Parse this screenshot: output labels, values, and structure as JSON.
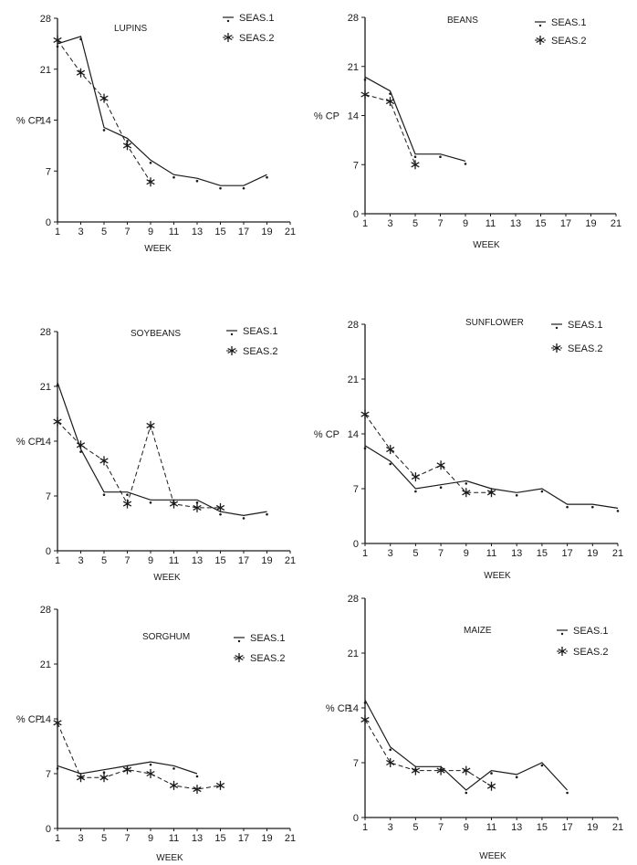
{
  "chart_data": [
    {
      "type": "line",
      "title": "LUPINS",
      "xlabel": "WEEK",
      "ylabel": "% CP",
      "ylim": [
        0,
        28
      ],
      "xlim": [
        1,
        21
      ],
      "yticks": [
        "0",
        "7",
        "14",
        "21",
        "28"
      ],
      "xticks": [
        "1",
        "3",
        "5",
        "7",
        "9",
        "11",
        "13",
        "15",
        "17",
        "19",
        "21"
      ],
      "legend": [
        "SEAS.1",
        "SEAS.2"
      ],
      "series": [
        {
          "name": "SEAS.1",
          "x": [
            1,
            3,
            5,
            7,
            9,
            11,
            13,
            15,
            17,
            19
          ],
          "y": [
            24.5,
            25.5,
            13,
            11.5,
            8.5,
            6.5,
            6,
            5,
            5,
            6.5
          ]
        },
        {
          "name": "SEAS.2",
          "x": [
            1,
            3,
            5,
            7,
            9
          ],
          "y": [
            25,
            20.5,
            17,
            10.5,
            5.5
          ]
        }
      ]
    },
    {
      "type": "line",
      "title": "BEANS",
      "xlabel": "WEEK",
      "ylabel": "% CP",
      "ylim": [
        0,
        28
      ],
      "xlim": [
        1,
        21
      ],
      "yticks": [
        "0",
        "7",
        "14",
        "21",
        "28"
      ],
      "xticks": [
        "1",
        "3",
        "5",
        "7",
        "9",
        "11",
        "13",
        "15",
        "17",
        "19",
        "21"
      ],
      "legend": [
        "SEAS.1",
        "SEAS.2"
      ],
      "series": [
        {
          "name": "SEAS.1",
          "x": [
            1,
            3,
            5,
            7,
            9
          ],
          "y": [
            19.5,
            17.5,
            8.5,
            8.5,
            7.5
          ]
        },
        {
          "name": "SEAS.2",
          "x": [
            1,
            3,
            5
          ],
          "y": [
            17,
            16,
            7
          ]
        }
      ]
    },
    {
      "type": "line",
      "title": "SOYBEANS",
      "xlabel": "WEEK",
      "ylabel": "% CP",
      "ylim": [
        0,
        28
      ],
      "xlim": [
        1,
        21
      ],
      "yticks": [
        "0",
        "7",
        "14",
        "21",
        "28"
      ],
      "xticks": [
        "1",
        "3",
        "5",
        "7",
        "9",
        "11",
        "13",
        "15",
        "17",
        "19",
        "21"
      ],
      "legend": [
        "SEAS.1",
        "SEAS.2"
      ],
      "series": [
        {
          "name": "SEAS.1",
          "x": [
            1,
            3,
            5,
            7,
            9,
            11,
            13,
            15,
            17,
            19
          ],
          "y": [
            21.5,
            13,
            7.5,
            7.5,
            6.5,
            6.5,
            6.5,
            5,
            4.5,
            5
          ]
        },
        {
          "name": "SEAS.2",
          "x": [
            1,
            3,
            5,
            7,
            9,
            11,
            13,
            15
          ],
          "y": [
            16.5,
            13.5,
            11.5,
            6,
            16,
            6,
            5.5,
            5.5
          ]
        }
      ]
    },
    {
      "type": "line",
      "title": "SUNFLOWER",
      "xlabel": "WEEK",
      "ylabel": "% CP",
      "ylim": [
        0,
        28
      ],
      "xlim": [
        1,
        21
      ],
      "yticks": [
        "0",
        "7",
        "14",
        "21",
        "28"
      ],
      "xticks": [
        "1",
        "3",
        "5",
        "7",
        "9",
        "11",
        "13",
        "15",
        "17",
        "19",
        "21"
      ],
      "legend": [
        "SEAS.1",
        "SEAS.2"
      ],
      "series": [
        {
          "name": "SEAS.1",
          "x": [
            1,
            3,
            5,
            7,
            9,
            11,
            13,
            15,
            17,
            19,
            21
          ],
          "y": [
            12.5,
            10.5,
            7,
            7.5,
            8,
            7,
            6.5,
            7,
            5,
            5,
            4.5
          ]
        },
        {
          "name": "SEAS.2",
          "x": [
            1,
            3,
            5,
            7,
            9,
            11
          ],
          "y": [
            16.5,
            12,
            8.5,
            10,
            6.5,
            6.5
          ]
        }
      ]
    },
    {
      "type": "line",
      "title": "SORGHUM",
      "xlabel": "WEEK",
      "ylabel": "% CP",
      "ylim": [
        0,
        28
      ],
      "xlim": [
        1,
        21
      ],
      "yticks": [
        "0",
        "7",
        "14",
        "21",
        "28"
      ],
      "xticks": [
        "1",
        "3",
        "5",
        "7",
        "9",
        "11",
        "13",
        "15",
        "17",
        "19",
        "21"
      ],
      "legend": [
        "SEAS.1",
        "SEAS.2"
      ],
      "series": [
        {
          "name": "SEAS.1",
          "x": [
            1,
            3,
            5,
            7,
            9,
            11,
            13
          ],
          "y": [
            8,
            7,
            7.5,
            8,
            8.5,
            8,
            7
          ]
        },
        {
          "name": "SEAS.2",
          "x": [
            1,
            3,
            5,
            7,
            9,
            11,
            13,
            15
          ],
          "y": [
            13.5,
            6.5,
            6.5,
            7.5,
            7,
            5.5,
            5,
            5.5
          ]
        }
      ]
    },
    {
      "type": "line",
      "title": "MAIZE",
      "xlabel": "WEEK",
      "ylabel": "% CP",
      "ylim": [
        0,
        28
      ],
      "xlim": [
        1,
        21
      ],
      "yticks": [
        "0",
        "7",
        "14",
        "21",
        "28"
      ],
      "xticks": [
        "1",
        "3",
        "5",
        "7",
        "9",
        "11",
        "13",
        "15",
        "17",
        "19",
        "21"
      ],
      "legend": [
        "SEAS.1",
        "SEAS.2"
      ],
      "series": [
        {
          "name": "SEAS.1",
          "x": [
            1,
            3,
            5,
            7,
            9,
            11,
            13,
            15,
            17
          ],
          "y": [
            15,
            9,
            6.5,
            6.5,
            3.5,
            6,
            5.5,
            7,
            3.5
          ]
        },
        {
          "name": "SEAS.2",
          "x": [
            1,
            3,
            5,
            7,
            9,
            11
          ],
          "y": [
            12.5,
            7,
            6,
            6,
            6,
            4
          ]
        }
      ]
    }
  ]
}
